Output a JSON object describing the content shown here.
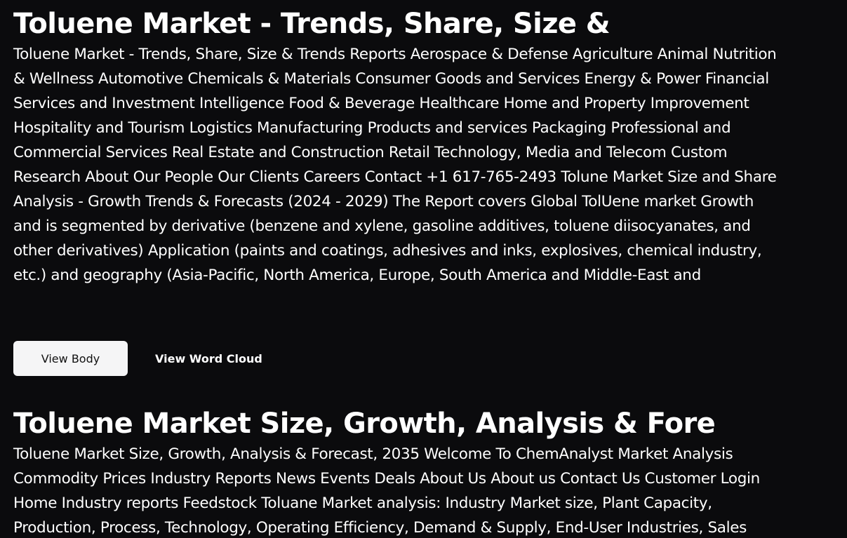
{
  "results": [
    {
      "title": "Toluene Market - Trends, Share, Size &",
      "snippet": "Toluene Market - Trends, Share, Size & Trends Reports Aerospace & Defense Agriculture Animal Nutrition & Wellness Automotive Chemicals & Materials Consumer Goods and Services Energy & Power Financial Services and Investment Intelligence Food & Beverage Healthcare Home and Property Improvement Hospitality and Tourism Logistics Manufacturing Products and services Packaging Professional and Commercial Services Real Estate and Construction Retail Technology, Media and Telecom Custom Research About Our People Our Clients Careers Contact +1 617-765-2493 Tolune Market Size and Share Analysis - Growth Trends & Forecasts (2024 - 2029) The Report covers Global TolUene market Growth and is segmented by derivative (benzene and xylene, gasoline additives, toluene diisocyanates, and other derivatives) Application (paints and coatings, adhesives and inks, explosives, chemical industry, etc.) and geography (Asia-Pacific, North America, Europe, South America and Middle-East and"
    },
    {
      "title": "Toluene Market Size, Growth, Analysis & Fore",
      "snippet": "Toluene Market Size, Growth, Analysis & Forecast, 2035 Welcome To ChemAnalyst Market Analysis Commodity Prices Industry Reports News Events Deals About Us About us Contact Us Customer Login Home Industry reports Feedstock Toluane Market analysis: Industry Market size, Plant Capacity, Production, Process, Technology, Operating Efficiency, Demand & Supply, End-User Industries, Sales"
    }
  ],
  "actions": {
    "view_body_label": "View Body",
    "view_word_cloud_label": "View Word Cloud"
  }
}
